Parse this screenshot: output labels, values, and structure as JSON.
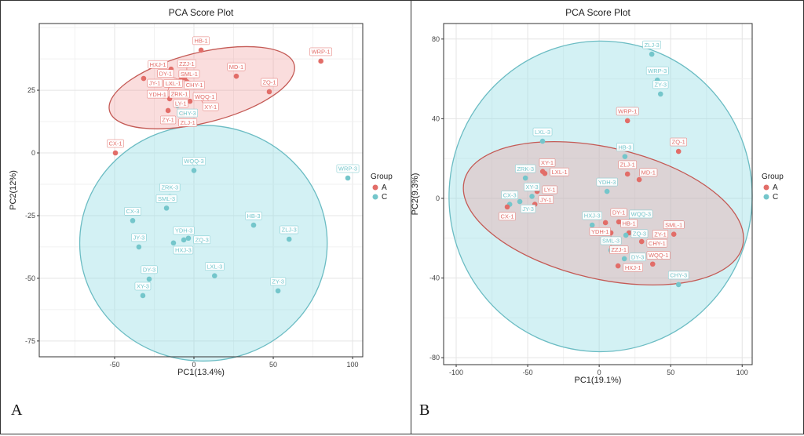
{
  "colors": {
    "A": "#e26d68",
    "C": "#74c6cb",
    "A_fill": "rgba(238,150,150,0.32)",
    "C_fill": "rgba(150,222,228,0.42)",
    "A_stroke": "#c45a55",
    "C_stroke": "#6bbcc3"
  },
  "panels": [
    {
      "letter": "A"
    },
    {
      "letter": "B"
    }
  ],
  "chart_data": [
    {
      "type": "scatter",
      "title": "PCA Score Plot",
      "xlabel": "PC1(13.4%)",
      "ylabel": "PC2(12%)",
      "xlim": [
        -97.5,
        106.4
      ],
      "ylim": [
        -81.3,
        51.6
      ],
      "xticks": [
        -50,
        0,
        50,
        100
      ],
      "yticks": [
        -75,
        -50,
        -25,
        0,
        25
      ],
      "grid": true,
      "legend": {
        "title": "Group",
        "entries": [
          "A",
          "C"
        ],
        "placement": "right"
      },
      "ellipses": [
        {
          "group": "C",
          "cx": 6,
          "cy": -36,
          "rx": 78,
          "ry": 47,
          "angle_deg": 0
        },
        {
          "group": "A",
          "cx": 5,
          "cy": 26,
          "rx": 60,
          "ry": 14,
          "angle_deg": 14
        }
      ],
      "points": [
        {
          "label": "HB-1",
          "group": "A",
          "x": 4.5,
          "y": 41
        },
        {
          "label": "HXJ-1",
          "group": "A",
          "x": -14.4,
          "y": 33.4
        },
        {
          "label": "CHY-1",
          "group": "A",
          "x": -6,
          "y": 30
        },
        {
          "label": "DY-1",
          "group": "A",
          "x": -8.4,
          "y": 29
        },
        {
          "label": "ZZJ-1",
          "group": "A",
          "x": -4.5,
          "y": 28.4
        },
        {
          "label": "SML-1",
          "group": "A",
          "x": -3,
          "y": 27.8
        },
        {
          "label": "JY-1",
          "group": "A",
          "x": -31.7,
          "y": 29.7
        },
        {
          "label": "YDH-1",
          "group": "A",
          "x": -14.9,
          "y": 27.5
        },
        {
          "label": "LXL-1",
          "group": "A",
          "x": -13,
          "y": 24
        },
        {
          "label": "ZRK-1",
          "group": "A",
          "x": -18.8,
          "y": 22.8
        },
        {
          "label": "LY-1",
          "group": "A",
          "x": -15.3,
          "y": 21.6
        },
        {
          "label": "XY-1",
          "group": "A",
          "x": 3.5,
          "y": 22.5
        },
        {
          "label": "WQQ-1",
          "group": "A",
          "x": -2.5,
          "y": 20.6
        },
        {
          "label": "ZY-1",
          "group": "A",
          "x": -16.3,
          "y": 16.9
        },
        {
          "label": "ZLJ-1",
          "group": "A",
          "x": -7,
          "y": 15.6
        },
        {
          "label": "MD-1",
          "group": "A",
          "x": 26.7,
          "y": 30.6
        },
        {
          "label": "ZQ-1",
          "group": "A",
          "x": 47.5,
          "y": 24.4
        },
        {
          "label": "WRP-1",
          "group": "A",
          "x": 80,
          "y": 36.6
        },
        {
          "label": "CX-1",
          "group": "A",
          "x": -49.5,
          "y": 0
        },
        {
          "label": "CHY-3",
          "group": "C",
          "x": -10.4,
          "y": 18.8
        },
        {
          "label": "WQQ-3",
          "group": "C",
          "x": 0,
          "y": -7
        },
        {
          "label": "ZRK-3",
          "group": "C",
          "x": -15.2,
          "y": -17.5
        },
        {
          "label": "SML-3",
          "group": "C",
          "x": -17.3,
          "y": -22
        },
        {
          "label": "CX-3",
          "group": "C",
          "x": -38.6,
          "y": -27
        },
        {
          "label": "HB-3",
          "group": "C",
          "x": 37.6,
          "y": -28.8
        },
        {
          "label": "YDH-3",
          "group": "C",
          "x": -6.4,
          "y": -34.7
        },
        {
          "label": "ZQ-3",
          "group": "C",
          "x": -3.5,
          "y": -34
        },
        {
          "label": "HXJ-3",
          "group": "C",
          "x": -12.9,
          "y": -35.9
        },
        {
          "label": "ZLJ-3",
          "group": "C",
          "x": 60,
          "y": -34.4
        },
        {
          "label": "JY-3",
          "group": "C",
          "x": -34.7,
          "y": -37.5
        },
        {
          "label": "LXL-3",
          "group": "C",
          "x": 13,
          "y": -49
        },
        {
          "label": "DY-3",
          "group": "C",
          "x": -28.2,
          "y": -50.3
        },
        {
          "label": "XY-3",
          "group": "C",
          "x": -32.2,
          "y": -56.9
        },
        {
          "label": "ZY-3",
          "group": "C",
          "x": 53,
          "y": -55
        },
        {
          "label": "WRP-3",
          "group": "C",
          "x": 97,
          "y": -10
        }
      ]
    },
    {
      "type": "scatter",
      "title": "PCA Score Plot",
      "xlabel": "PC1(19.1%)",
      "ylabel": "PC2(9.3%)",
      "xlim": [
        -108.8,
        107
      ],
      "ylim": [
        -83.5,
        87.8
      ],
      "xticks": [
        -100,
        -50,
        0,
        50,
        100
      ],
      "yticks": [
        -80,
        -40,
        0,
        40,
        80
      ],
      "grid": true,
      "legend": {
        "title": "Group",
        "entries": [
          "A",
          "C"
        ],
        "placement": "right"
      },
      "ellipses": [
        {
          "group": "C",
          "cx": 1,
          "cy": 1,
          "rx": 106,
          "ry": 78,
          "angle_deg": -3
        },
        {
          "group": "A",
          "cx": 3,
          "cy": -7.5,
          "rx": 100,
          "ry": 33,
          "angle_deg": -13
        }
      ],
      "points": [
        {
          "label": "ZLJ-3",
          "group": "C",
          "x": 36.8,
          "y": 72.4
        },
        {
          "label": "WRP-3",
          "group": "C",
          "x": 40.7,
          "y": 59.4
        },
        {
          "label": "ZY-3",
          "group": "C",
          "x": 42.9,
          "y": 52.4
        },
        {
          "label": "WRP-1",
          "group": "A",
          "x": 19.8,
          "y": 39
        },
        {
          "label": "ZQ-1",
          "group": "A",
          "x": 55.5,
          "y": 23.6
        },
        {
          "label": "LXL-3",
          "group": "C",
          "x": -39.6,
          "y": 28.7
        },
        {
          "label": "HB-3",
          "group": "C",
          "x": 18,
          "y": 21
        },
        {
          "label": "ZLJ-1",
          "group": "A",
          "x": 19.8,
          "y": 12.2
        },
        {
          "label": "MD-1",
          "group": "A",
          "x": 28,
          "y": 9.4
        },
        {
          "label": "ZRK-3",
          "group": "C",
          "x": -51.6,
          "y": 10.2
        },
        {
          "label": "XY-1",
          "group": "A",
          "x": -39.5,
          "y": 13.5
        },
        {
          "label": "LXL-1",
          "group": "A",
          "x": -38,
          "y": 12.5
        },
        {
          "label": "LY-1",
          "group": "A",
          "x": -43.4,
          "y": 3.5
        },
        {
          "label": "JY-1",
          "group": "A",
          "x": -45,
          "y": -3
        },
        {
          "label": "XY-3",
          "group": "C",
          "x": -47,
          "y": 1
        },
        {
          "label": "CX-3",
          "group": "C",
          "x": -62.6,
          "y": -3
        },
        {
          "label": "CX-1",
          "group": "A",
          "x": -64.3,
          "y": -4.3
        },
        {
          "label": "JY-3",
          "group": "C",
          "x": -55.5,
          "y": -1.6
        },
        {
          "label": "YDH-3",
          "group": "C",
          "x": 5.5,
          "y": 3.5
        },
        {
          "label": "DY-1",
          "group": "A",
          "x": 13.7,
          "y": -11.8
        },
        {
          "label": "YDH-1",
          "group": "A",
          "x": 4.4,
          "y": -12.2
        },
        {
          "label": "WQQ-3",
          "group": "C",
          "x": 19.8,
          "y": -13
        },
        {
          "label": "HXJ-3",
          "group": "C",
          "x": -4.9,
          "y": -13.4
        },
        {
          "label": "ZZJ-1",
          "group": "A",
          "x": 8.2,
          "y": -17.3
        },
        {
          "label": "HB-1",
          "group": "A",
          "x": 20.9,
          "y": -17.3
        },
        {
          "label": "ZQ-3",
          "group": "C",
          "x": 18.7,
          "y": -18.5
        },
        {
          "label": "SML-1",
          "group": "A",
          "x": 52.2,
          "y": -18
        },
        {
          "label": "ZY-1",
          "group": "A",
          "x": 39.6,
          "y": -22.4
        },
        {
          "label": "CHY-1",
          "group": "A",
          "x": 29.7,
          "y": -21.7
        },
        {
          "label": "SML-3",
          "group": "C",
          "x": 8.2,
          "y": -26
        },
        {
          "label": "DY-3",
          "group": "C",
          "x": 17.6,
          "y": -30.3
        },
        {
          "label": "HXJ-1",
          "group": "A",
          "x": 13.2,
          "y": -33.9
        },
        {
          "label": "WQQ-1",
          "group": "A",
          "x": 37.4,
          "y": -33
        },
        {
          "label": "CHY-3",
          "group": "C",
          "x": 55.5,
          "y": -43.3
        }
      ]
    }
  ]
}
